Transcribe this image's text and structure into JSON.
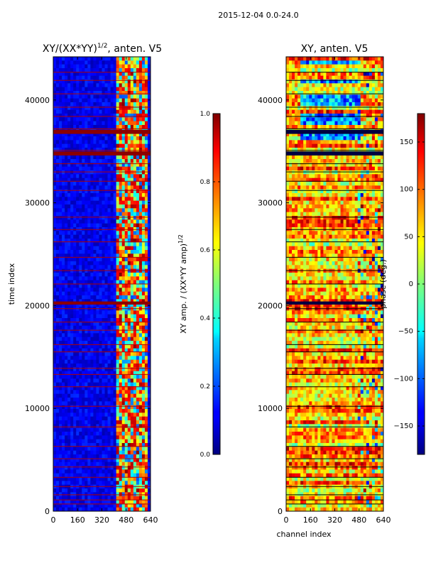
{
  "suptitle": "2015-12-04 0.0-24.0",
  "chart_data": [
    {
      "type": "heatmap",
      "title_main": "XY/(XX*YY)",
      "title_sup": "1/2",
      "title_rest": ", anten. V5",
      "xlabel": "",
      "ylabel": "time index",
      "xlim": [
        0,
        640
      ],
      "ylim": [
        0,
        44200
      ],
      "xticks": [
        0,
        160,
        320,
        480,
        640
      ],
      "yticks": [
        0,
        10000,
        20000,
        30000,
        40000
      ],
      "active_channel_start": 400,
      "active_channel_end": 620,
      "colorbar": {
        "label_main": "XY amp. / (XX*YY amp)",
        "label_sup": "1/2",
        "vmin": 0.0,
        "vmax": 1.0,
        "ticks": [
          "0.0",
          "0.2",
          "0.4",
          "0.6",
          "0.8",
          "1.0"
        ],
        "tick_values": [
          0.0,
          0.2,
          0.4,
          0.6,
          0.8,
          1.0
        ]
      }
    },
    {
      "type": "heatmap",
      "title": "XY, anten. V5",
      "xlabel": "channel index",
      "ylabel": "",
      "xlim": [
        0,
        640
      ],
      "ylim": [
        0,
        44200
      ],
      "xticks": [
        0,
        160,
        320,
        480,
        640
      ],
      "yticks": [
        0,
        10000,
        20000,
        30000,
        40000
      ],
      "colorbar": {
        "label": "phase (deg.)",
        "vmin": -180,
        "vmax": 180,
        "ticks": [
          "−150",
          "−100",
          "−50",
          "0",
          "50",
          "100",
          "150"
        ],
        "tick_values": [
          -150,
          -100,
          -50,
          0,
          50,
          100,
          150
        ]
      }
    }
  ],
  "flagged_rows": [
    700,
    1100,
    1600,
    2400,
    3300,
    4300,
    5100,
    6300,
    8200,
    10200,
    12100,
    13300,
    13900,
    15500,
    16200,
    17600,
    18400,
    19700,
    20300,
    22100,
    23400,
    24700,
    26200,
    27400,
    28600,
    31200,
    32100,
    33000,
    33800,
    34800,
    35100,
    36900,
    37200,
    38400,
    39300,
    40600,
    41900,
    42700
  ],
  "wide_flagged_bands": [
    [
      34600,
      35000
    ],
    [
      36700,
      37100
    ],
    [
      20100,
      20400
    ]
  ]
}
